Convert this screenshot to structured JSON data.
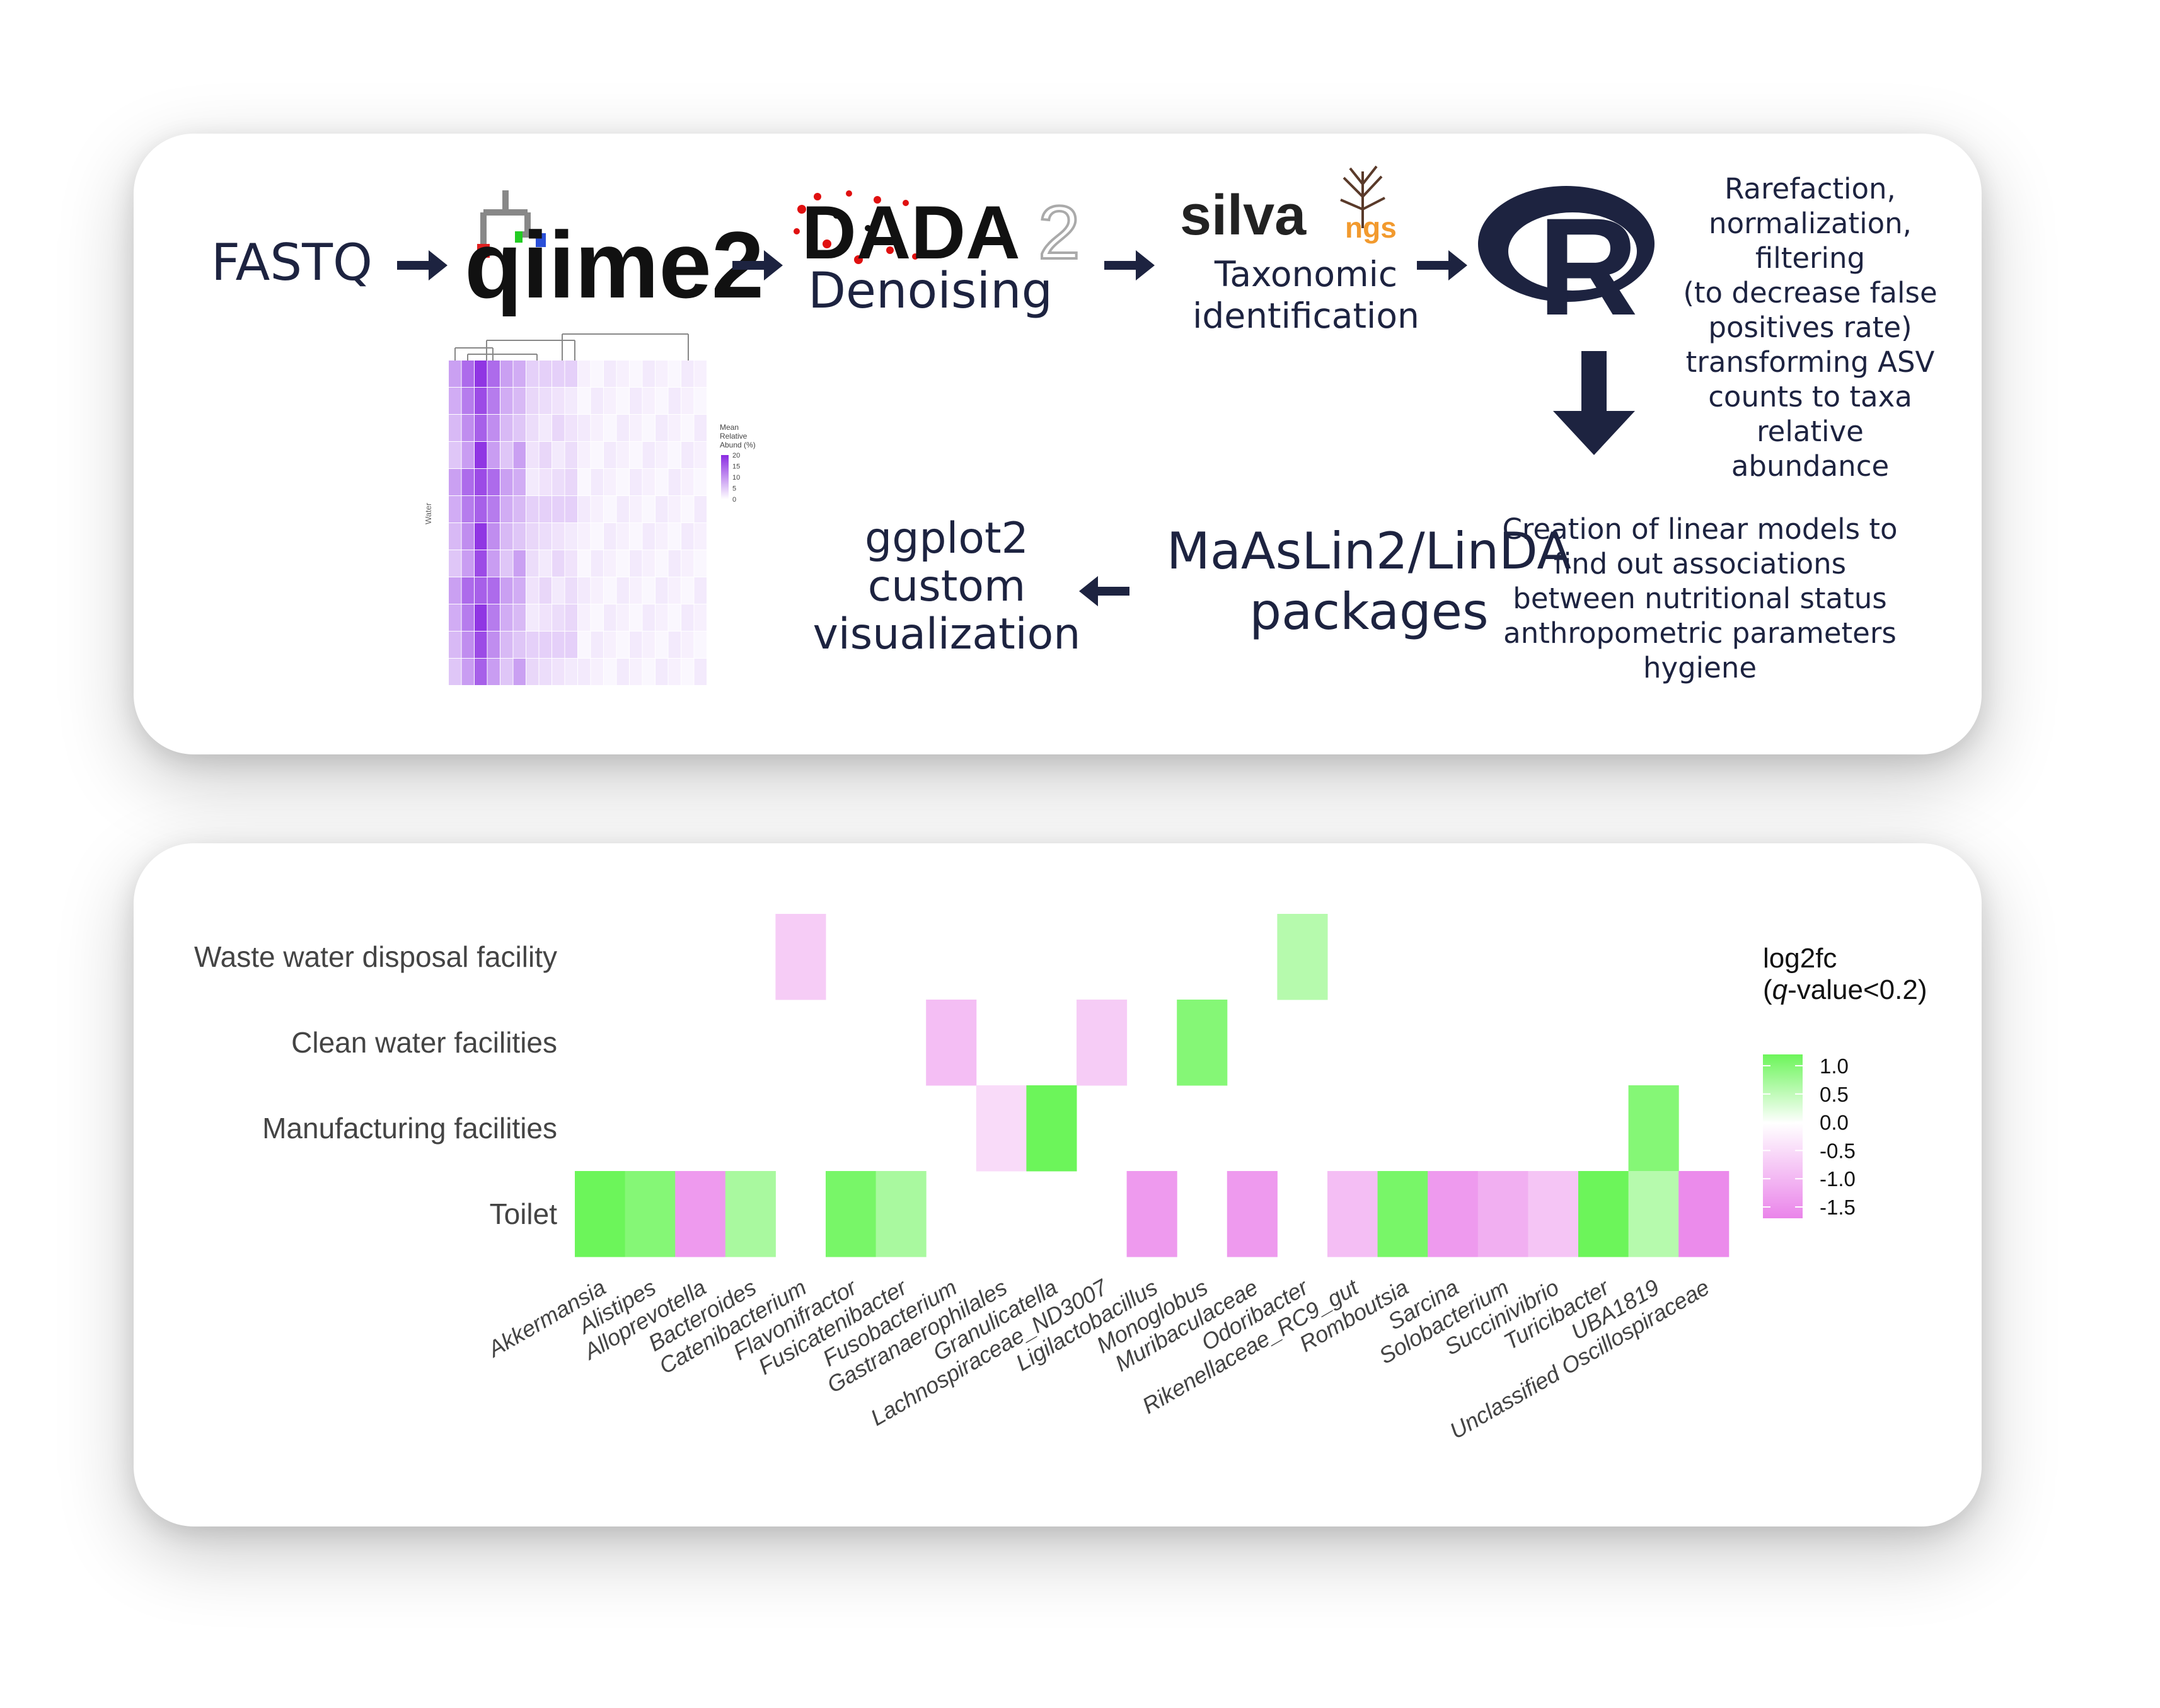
{
  "pipeline": {
    "fastq": "FASTQ",
    "qiime_logo": "qiime2",
    "dada_logo_a": "DADA",
    "dada_logo_b": "2",
    "denoising": "Denoising",
    "silva_logo": "silva",
    "silva_ngs": "ngs",
    "taxonomic": "Taxonomic\nidentification",
    "r_logo": "R",
    "rarefaction": "Rarefaction,\nnormalization,\nfiltering\n(to decrease false\npositives rate)\ntransforming ASV\ncounts to taxa\nrelative\nabundance",
    "linear_models": "Creation of linear models to\nfind out associations\nbetween nutritional status\nanthropometric parameters\nhygiene",
    "maaslin": "MaAsLin2/LinDA\npackages",
    "ggplot": "ggplot2\ncustom\nvisualization"
  },
  "colors": {
    "navy": "#1d2340",
    "green_max": "#6cf55a",
    "pink_min": "#ea84ea",
    "purple": "#8a2be2"
  },
  "chart_data": {
    "type": "heatmap",
    "title": "",
    "rows": [
      "Waste water disposal facility",
      "Clean water facilities",
      "Manufacturing facilities",
      "Toilet"
    ],
    "columns": [
      "Akkermansia",
      "Alistipes",
      "Alloprevotella",
      "Bacteroides",
      "Catenibacterium",
      "Flavonifractor",
      "Fusicatenibacter",
      "Fusobacterium",
      "Gastranaerophilales",
      "Granulicatella",
      "Lachnospiraceae_ND3007",
      "Ligilactobacillus",
      "Monoglobus",
      "Muribaculaceae",
      "Odoribacter",
      "Rikenellaceae_RC9_gut",
      "Romboutsia",
      "Sarcina",
      "Solobacterium",
      "Succinivibrio",
      "Turicibacter",
      "UBA1819",
      "Unclassified Oscillospiraceae"
    ],
    "cells": [
      {
        "row": 0,
        "col": 4,
        "value": -0.7
      },
      {
        "row": 0,
        "col": 14,
        "value": 0.6
      },
      {
        "row": 1,
        "col": 7,
        "value": -0.9
      },
      {
        "row": 1,
        "col": 10,
        "value": -0.7
      },
      {
        "row": 1,
        "col": 12,
        "value": 1.0
      },
      {
        "row": 2,
        "col": 8,
        "value": -0.5
      },
      {
        "row": 2,
        "col": 9,
        "value": 1.3
      },
      {
        "row": 2,
        "col": 21,
        "value": 1.0
      },
      {
        "row": 3,
        "col": 0,
        "value": 1.3
      },
      {
        "row": 3,
        "col": 1,
        "value": 1.0
      },
      {
        "row": 3,
        "col": 2,
        "value": -1.4
      },
      {
        "row": 3,
        "col": 3,
        "value": 0.7
      },
      {
        "row": 3,
        "col": 5,
        "value": 1.1
      },
      {
        "row": 3,
        "col": 6,
        "value": 0.7
      },
      {
        "row": 3,
        "col": 11,
        "value": -1.4
      },
      {
        "row": 3,
        "col": 13,
        "value": -1.4
      },
      {
        "row": 3,
        "col": 15,
        "value": -0.9
      },
      {
        "row": 3,
        "col": 16,
        "value": 1.1
      },
      {
        "row": 3,
        "col": 17,
        "value": -1.4
      },
      {
        "row": 3,
        "col": 18,
        "value": -1.1
      },
      {
        "row": 3,
        "col": 19,
        "value": -0.8
      },
      {
        "row": 3,
        "col": 20,
        "value": 1.3
      },
      {
        "row": 3,
        "col": 21,
        "value": 0.6
      },
      {
        "row": 3,
        "col": 22,
        "value": -1.6
      }
    ],
    "legend": {
      "title_line1": "log2fc",
      "title_q": "q",
      "title_rest": "-value<0.2)",
      "title_open": "(",
      "ticks": [
        "1.0",
        "0.5",
        "0.0",
        "-0.5",
        "-1.0",
        "-1.5"
      ],
      "tick_values": [
        1.0,
        0.5,
        0.0,
        -0.5,
        -1.0,
        -1.5
      ],
      "range": [
        -1.7,
        1.2
      ],
      "placement": "right"
    }
  },
  "inset_heatmap": {
    "y_label": "Water",
    "legend_title": "Mean\nRelative\nAbund (%)",
    "legend_ticks": [
      "20",
      "15",
      "10",
      "5",
      "0"
    ],
    "tick_values": [
      20,
      15,
      10,
      5,
      0
    ]
  }
}
